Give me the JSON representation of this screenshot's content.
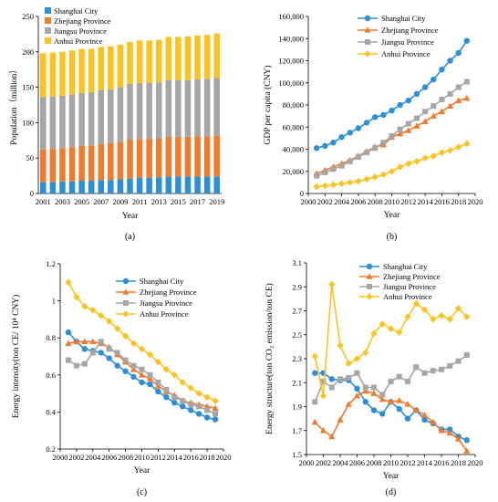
{
  "chart_data": [
    {
      "type": "bar",
      "stacked": true,
      "caption": "(a)",
      "xlabel": "Year",
      "ylabel": "Population（million）",
      "ylim": [
        0,
        250
      ],
      "yticks": [
        0,
        50,
        100,
        150,
        200,
        250
      ],
      "categories": [
        "2001",
        "2002",
        "2003",
        "2004",
        "2005",
        "2006",
        "2007",
        "2008",
        "2009",
        "2010",
        "2011",
        "2012",
        "2013",
        "2014",
        "2015",
        "2016",
        "2017",
        "2018",
        "2019"
      ],
      "xtick_labels": [
        "2001",
        "2003",
        "2005",
        "2007",
        "2009",
        "2011",
        "2013",
        "2015",
        "2017",
        "2019"
      ],
      "legend_position": "top-left",
      "series": [
        {
          "name": "Shanghai City",
          "color": "#2e8fd6",
          "values": [
            16,
            16,
            17,
            17,
            18,
            18,
            19,
            19,
            20,
            21,
            22,
            22,
            23,
            24,
            24,
            24,
            24,
            24,
            24
          ]
        },
        {
          "name": "Zhejiang Province",
          "color": "#f07b2f",
          "values": [
            46,
            47,
            47,
            48,
            49,
            50,
            51,
            52,
            53,
            55,
            55,
            55,
            55,
            56,
            56,
            56,
            57,
            57,
            58
          ]
        },
        {
          "name": "Jiangsu Province",
          "color": "#a6a6a6",
          "values": [
            74,
            74,
            74,
            75,
            75,
            75,
            76,
            76,
            77,
            79,
            79,
            79,
            79,
            80,
            80,
            80,
            80,
            81,
            81
          ]
        },
        {
          "name": "Anhui Province",
          "color": "#fcc21f",
          "values": [
            62,
            62,
            62,
            62,
            62,
            61,
            61,
            61,
            60,
            59,
            60,
            60,
            60,
            61,
            61,
            62,
            62,
            62,
            63
          ]
        }
      ]
    },
    {
      "type": "line",
      "caption": "(b)",
      "xlabel": "Year",
      "ylabel": "GDP per capita (CNY)",
      "ylim": [
        0,
        160000
      ],
      "yticks": [
        "0",
        "20,000",
        "40,000",
        "60,000",
        "80,000",
        "100,000",
        "120,000",
        "140,000",
        "160,000"
      ],
      "xlim": [
        2000,
        2020
      ],
      "xticks": [
        "2000",
        "2002",
        "2004",
        "2006",
        "2008",
        "2010",
        "2012",
        "2014",
        "2016",
        "2018",
        "2020"
      ],
      "legend_position": "top-center",
      "x": [
        2001,
        2002,
        2003,
        2004,
        2005,
        2006,
        2007,
        2008,
        2009,
        2010,
        2011,
        2012,
        2013,
        2014,
        2015,
        2016,
        2017,
        2018,
        2019
      ],
      "series": [
        {
          "name": "Shanghai City",
          "color": "#2e8fd6",
          "marker": "circle",
          "values": [
            41000,
            43000,
            46000,
            51000,
            55000,
            59000,
            64000,
            69000,
            71000,
            75000,
            80000,
            84000,
            90000,
            96000,
            103000,
            112000,
            120000,
            127000,
            138000
          ]
        },
        {
          "name": "Zhejiang Province",
          "color": "#f07b2f",
          "marker": "triangle",
          "values": [
            18000,
            21000,
            24000,
            27000,
            30000,
            34000,
            38000,
            42000,
            44000,
            51000,
            54000,
            57000,
            61000,
            65000,
            70000,
            74000,
            79000,
            84000,
            86000
          ]
        },
        {
          "name": "Jiangsu Province",
          "color": "#a6a6a6",
          "marker": "square",
          "values": [
            16000,
            19000,
            22000,
            25000,
            29000,
            33000,
            37000,
            41000,
            46000,
            52000,
            58000,
            63000,
            68000,
            74000,
            79000,
            85000,
            90000,
            96000,
            101000
          ]
        },
        {
          "name": "Anhui Province",
          "color": "#fcc21f",
          "marker": "diamond",
          "values": [
            6000,
            7000,
            8000,
            9000,
            10000,
            11000,
            13000,
            15000,
            17000,
            20000,
            24000,
            27000,
            29000,
            32000,
            34000,
            37000,
            39000,
            42000,
            45000
          ]
        }
      ]
    },
    {
      "type": "line",
      "caption": "(c)",
      "xlabel": "Year",
      "ylabel": "Energy intensity(ton CE/ 10⁴ CNY)",
      "ylim": [
        0.2,
        1.2
      ],
      "yticks": [
        "0.2",
        "0.4",
        "0.6",
        "0.8",
        "1",
        "1.2"
      ],
      "xlim": [
        2000,
        2020
      ],
      "xticks": [
        "2000",
        "2002",
        "2004",
        "2006",
        "2008",
        "2010",
        "2012",
        "2014",
        "2016",
        "2018",
        "2020"
      ],
      "legend_position": "top-right",
      "x": [
        2001,
        2002,
        2003,
        2004,
        2005,
        2006,
        2007,
        2008,
        2009,
        2010,
        2011,
        2012,
        2013,
        2014,
        2015,
        2016,
        2017,
        2018,
        2019
      ],
      "series": [
        {
          "name": "Shanghai City",
          "color": "#2e8fd6",
          "marker": "circle",
          "values": [
            0.83,
            0.78,
            0.74,
            0.73,
            0.72,
            0.69,
            0.65,
            0.62,
            0.59,
            0.56,
            0.55,
            0.51,
            0.48,
            0.45,
            0.43,
            0.41,
            0.39,
            0.37,
            0.36
          ]
        },
        {
          "name": "Zhejiang Province",
          "color": "#f07b2f",
          "marker": "triangle",
          "values": [
            0.77,
            0.78,
            0.78,
            0.78,
            0.77,
            0.75,
            0.71,
            0.67,
            0.63,
            0.6,
            0.58,
            0.54,
            0.51,
            0.49,
            0.46,
            0.45,
            0.44,
            0.43,
            0.42
          ]
        },
        {
          "name": "Jiangsu Province",
          "color": "#a6a6a6",
          "marker": "square",
          "values": [
            0.68,
            0.65,
            0.66,
            0.72,
            0.78,
            0.74,
            0.72,
            0.68,
            0.65,
            0.63,
            0.6,
            0.56,
            0.52,
            0.48,
            0.46,
            0.44,
            0.43,
            0.41,
            0.39
          ]
        },
        {
          "name": "Anhui Province",
          "color": "#fcc21f",
          "marker": "diamond",
          "values": [
            1.1,
            1.02,
            0.97,
            0.95,
            0.92,
            0.89,
            0.85,
            0.81,
            0.77,
            0.74,
            0.71,
            0.67,
            0.63,
            0.6,
            0.56,
            0.53,
            0.5,
            0.48,
            0.46
          ]
        }
      ]
    },
    {
      "type": "line",
      "caption": "(d)",
      "xlabel": "Year",
      "ylabel": "Energy structure(ton CO₂ emission/ton CE)",
      "ylim": [
        1.5,
        3.1
      ],
      "yticks": [
        "1.5",
        "1.7",
        "1.9",
        "2.1",
        "2.3",
        "2.5",
        "2.7",
        "2.9",
        "3.1"
      ],
      "xlim": [
        2000,
        2020
      ],
      "xticks": [
        "2000",
        "2002",
        "2004",
        "2006",
        "2008",
        "2010",
        "2012",
        "2014",
        "2016",
        "2018",
        "2020"
      ],
      "legend_position": "top-right",
      "x": [
        2001,
        2002,
        2003,
        2004,
        2005,
        2006,
        2007,
        2008,
        2009,
        2010,
        2011,
        2012,
        2013,
        2014,
        2015,
        2016,
        2017,
        2018,
        2019
      ],
      "series": [
        {
          "name": "Shanghai City",
          "color": "#2e8fd6",
          "marker": "circle",
          "values": [
            2.18,
            2.18,
            2.13,
            2.12,
            2.12,
            2.05,
            1.94,
            1.87,
            1.84,
            1.94,
            1.88,
            1.8,
            1.87,
            1.79,
            1.76,
            1.71,
            1.71,
            1.65,
            1.62
          ]
        },
        {
          "name": "Zhejiang Province",
          "color": "#f07b2f",
          "marker": "triangle",
          "values": [
            1.77,
            1.7,
            1.65,
            1.79,
            1.92,
            1.99,
            2.03,
            2.01,
            1.96,
            1.94,
            1.95,
            1.92,
            1.87,
            1.83,
            1.77,
            1.7,
            1.68,
            1.63,
            1.53
          ]
        },
        {
          "name": "Jiangsu Province",
          "color": "#a6a6a6",
          "marker": "square",
          "values": [
            1.94,
            2.11,
            2.06,
            2.13,
            2.14,
            2.18,
            2.06,
            2.06,
            2.0,
            2.11,
            2.15,
            2.11,
            2.23,
            2.18,
            2.2,
            2.21,
            2.24,
            2.28,
            2.33
          ]
        },
        {
          "name": "Anhui Province",
          "color": "#fcc21f",
          "marker": "diamond",
          "values": [
            2.32,
            1.99,
            2.92,
            2.41,
            2.26,
            2.3,
            2.35,
            2.51,
            2.59,
            2.55,
            2.52,
            2.65,
            2.76,
            2.71,
            2.63,
            2.66,
            2.63,
            2.72,
            2.65
          ]
        }
      ]
    }
  ]
}
